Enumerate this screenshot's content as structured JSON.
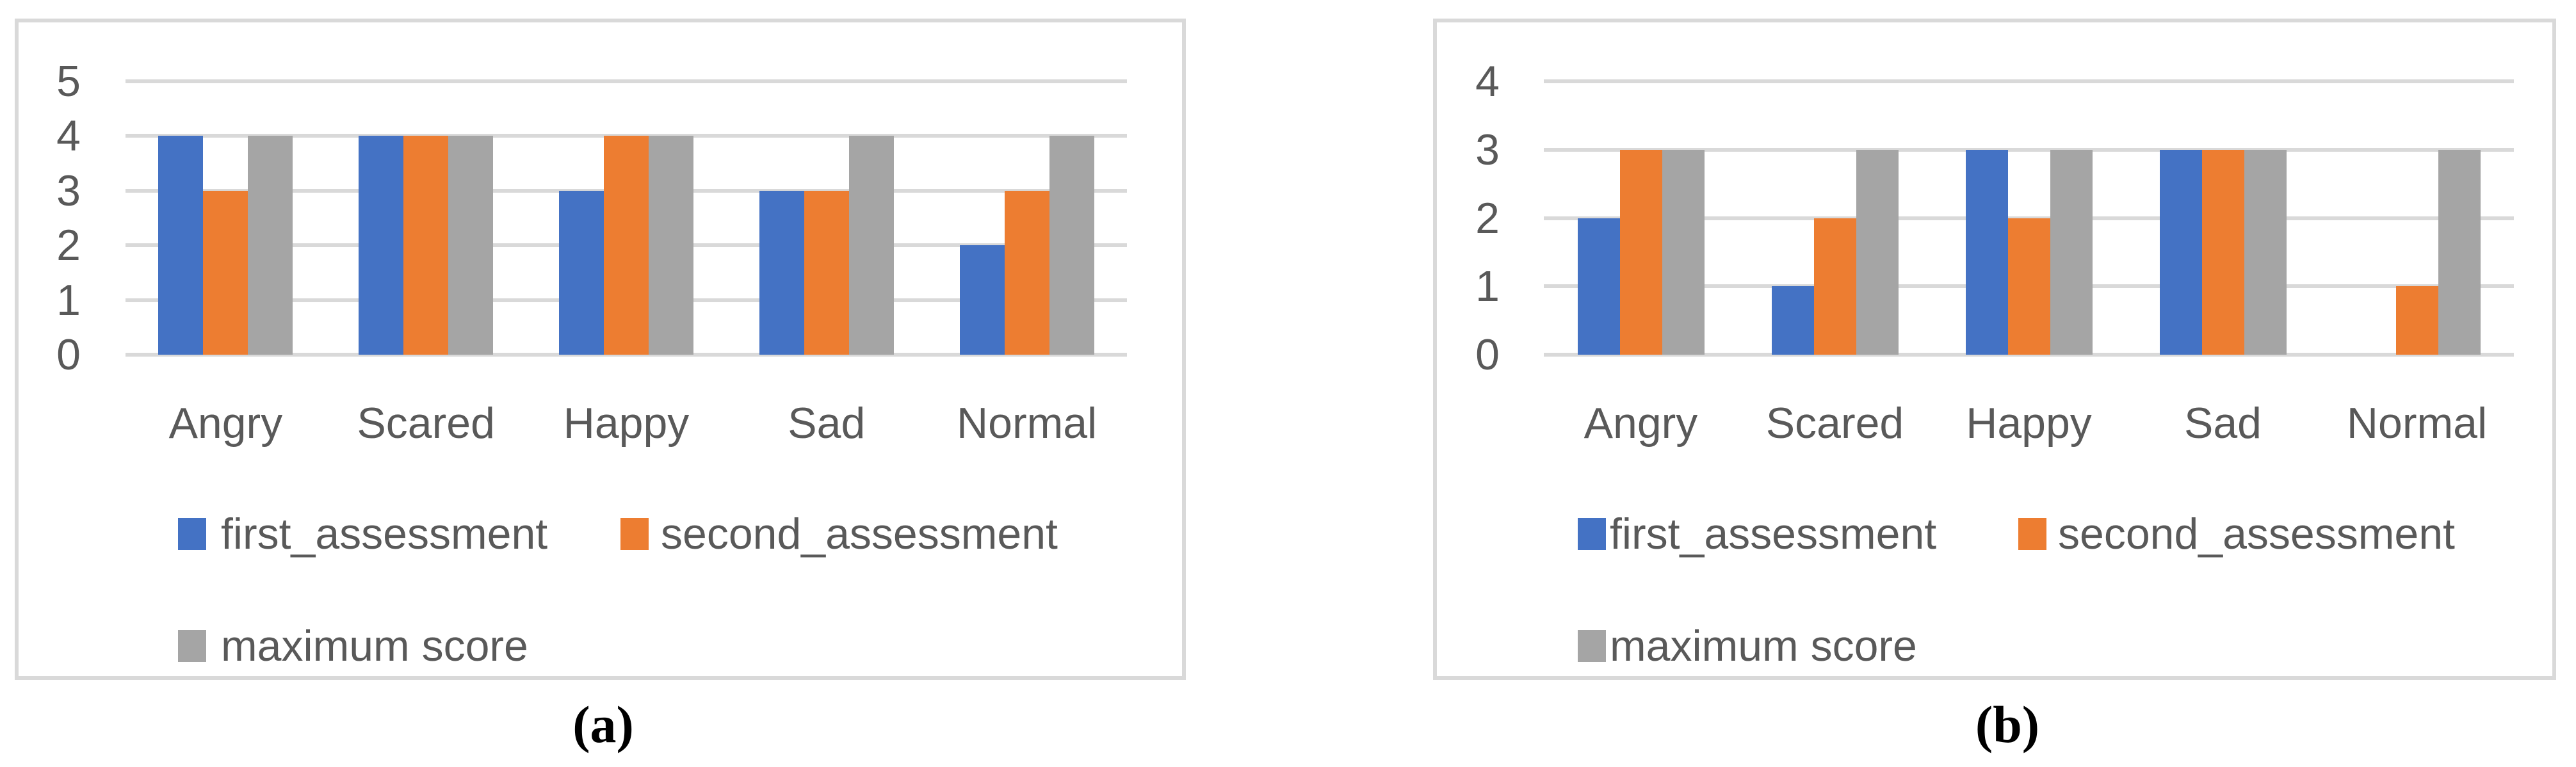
{
  "figure": {
    "description_colors": {
      "first_assessment": "#4472C4",
      "second_assessment": "#ED7D31",
      "maximum_score": "#A5A5A5",
      "gridline": "#D9D9D9",
      "panel_border": "#D9D9D9",
      "axis_text": "#595959"
    }
  },
  "chart_data": [
    {
      "id": "a",
      "type": "bar",
      "title": "",
      "caption": "(a)",
      "categories": [
        "Angry",
        "Scared",
        "Happy",
        "Sad",
        "Normal"
      ],
      "series": [
        {
          "name": "first_assessment",
          "color": "#4472C4",
          "values": [
            4,
            4,
            3,
            3,
            2
          ]
        },
        {
          "name": "second_assessment",
          "color": "#ED7D31",
          "values": [
            3,
            4,
            4,
            3,
            3
          ]
        },
        {
          "name": "maximum score",
          "color": "#A5A5A5",
          "values": [
            4,
            4,
            4,
            4,
            4
          ]
        }
      ],
      "xlabel": "",
      "ylabel": "",
      "ylim": [
        0,
        5
      ],
      "yticks": [
        0,
        1,
        2,
        3,
        4,
        5
      ],
      "grid": true,
      "legend_position": "bottom"
    },
    {
      "id": "b",
      "type": "bar",
      "title": "",
      "caption": "(b)",
      "categories": [
        "Angry",
        "Scared",
        "Happy",
        "Sad",
        "Normal"
      ],
      "series": [
        {
          "name": "first_assessment",
          "color": "#4472C4",
          "values": [
            2,
            1,
            3,
            3,
            0
          ]
        },
        {
          "name": "second_assessment",
          "color": "#ED7D31",
          "values": [
            3,
            2,
            2,
            3,
            1
          ]
        },
        {
          "name": "maximum score",
          "color": "#A5A5A5",
          "values": [
            3,
            3,
            3,
            3,
            3
          ]
        }
      ],
      "xlabel": "",
      "ylabel": "",
      "ylim": [
        0,
        4
      ],
      "yticks": [
        0,
        1,
        2,
        3,
        4
      ],
      "grid": true,
      "legend_position": "bottom"
    }
  ]
}
